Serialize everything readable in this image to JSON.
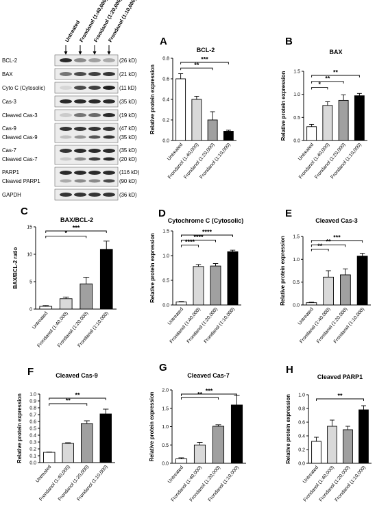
{
  "western_blot": {
    "column_labels": [
      "Untreated",
      "Frondanol (1:40,000)",
      "Frondanol (1:20,000)",
      "Frondanol (1:10,000)"
    ],
    "rows": [
      {
        "label": "BCL-2",
        "kd": "(26 kD)",
        "kind": "single",
        "intensity": [
          0.9,
          0.45,
          0.35,
          0.3
        ]
      },
      {
        "label": "BAX",
        "kd": "(21 kD)",
        "kind": "single",
        "intensity": [
          0.55,
          0.75,
          0.8,
          0.85
        ]
      },
      {
        "label": "Cyto C (Cytosolic)",
        "kd": "(11 kD)",
        "kind": "single",
        "intensity": [
          0.1,
          0.75,
          0.8,
          0.95
        ]
      },
      {
        "label": "Cas-3",
        "kd": "(35 kD)",
        "kind": "single",
        "intensity": [
          0.9,
          0.9,
          0.9,
          0.9
        ]
      },
      {
        "label": "Cleaved Cas-3",
        "kd": "(19 kD)",
        "kind": "single",
        "intensity": [
          0.15,
          0.55,
          0.6,
          0.9
        ]
      },
      {
        "label": "Cas-9",
        "kd": "(47 kD)",
        "label2": "Cleaved Cas-9",
        "kd2": "(35 kD)",
        "kind": "double",
        "intensity": [
          0.85,
          0.85,
          0.85,
          0.85
        ],
        "intensity2": [
          0.2,
          0.4,
          0.7,
          0.85
        ]
      },
      {
        "label": "Cas-7",
        "kd": "(35 kD)",
        "label2": "Cleaved Cas-7",
        "kd2": "(20 kD)",
        "kind": "double",
        "intensity": [
          0.85,
          0.9,
          0.9,
          0.9
        ],
        "intensity2": [
          0.15,
          0.45,
          0.8,
          0.9
        ]
      },
      {
        "label": "PARP1",
        "kd": "(116 kD)",
        "label2": "Cleaved PARP1",
        "kd2": "(90 kD)",
        "kind": "double",
        "intensity": [
          0.9,
          0.9,
          0.9,
          0.9
        ],
        "intensity2": [
          0.3,
          0.45,
          0.45,
          0.75
        ]
      },
      {
        "label": "GAPDH",
        "kd": "(36 kD)",
        "kind": "single",
        "intensity": [
          0.85,
          0.85,
          0.85,
          0.85
        ]
      }
    ]
  },
  "chart_data": [
    {
      "panel": "A",
      "type": "bar",
      "title": "BCL-2",
      "ylabel": "Relative protein expression",
      "categories": [
        "Untreated",
        "Frondanol (1:40,000)",
        "Frondanol (1:20,000)",
        "Frondanol (1:10,000)"
      ],
      "values": [
        0.6,
        0.4,
        0.2,
        0.09
      ],
      "errors": [
        0.05,
        0.03,
        0.08,
        0.01
      ],
      "ylim": [
        0,
        0.8
      ],
      "yticks": [
        "0.0",
        "0.2",
        "0.4",
        "0.6",
        "0.8"
      ],
      "fills": [
        "#ffffff",
        "#d9d9d9",
        "#a0a0a0",
        "#000000"
      ],
      "significance": [
        {
          "from": 0,
          "to": 2,
          "label": "**"
        },
        {
          "from": 0,
          "to": 3,
          "label": "***"
        }
      ]
    },
    {
      "panel": "B",
      "type": "bar",
      "title": "BAX",
      "ylabel": "Relative protein expression",
      "categories": [
        "Untreated",
        "Frondanol (1:40,000)",
        "Frondanol (1:20,000)",
        "Frondanol (1:10,000)"
      ],
      "values": [
        0.3,
        0.76,
        0.87,
        0.97
      ],
      "errors": [
        0.05,
        0.08,
        0.12,
        0.05
      ],
      "ylim": [
        0,
        1.5
      ],
      "yticks": [
        "0.0",
        "0.5",
        "1.0",
        "1.5"
      ],
      "fills": [
        "#ffffff",
        "#d9d9d9",
        "#a0a0a0",
        "#000000"
      ],
      "significance": [
        {
          "from": 0,
          "to": 1,
          "label": "*"
        },
        {
          "from": 0,
          "to": 2,
          "label": "**"
        },
        {
          "from": 0,
          "to": 3,
          "label": "**"
        }
      ]
    },
    {
      "panel": "C",
      "type": "bar",
      "title": "BAX/BCL-2",
      "ylabel": "BAX/BCL-2 ratio",
      "categories": [
        "Untreated",
        "Frondanol (1:40,000)",
        "Frondanol (1:20,000)",
        "Frondanol (1:10,000)"
      ],
      "values": [
        0.5,
        1.9,
        4.6,
        10.9
      ],
      "errors": [
        0.15,
        0.3,
        1.2,
        1.5
      ],
      "ylim": [
        0,
        15
      ],
      "yticks": [
        "0",
        "5",
        "10",
        "15"
      ],
      "fills": [
        "#ffffff",
        "#d9d9d9",
        "#a0a0a0",
        "#000000"
      ],
      "significance": [
        {
          "from": 0,
          "to": 2,
          "label": "*"
        },
        {
          "from": 0,
          "to": 3,
          "label": "***"
        }
      ]
    },
    {
      "panel": "D",
      "type": "bar",
      "title": "Cytochrome C (Cytosolic)",
      "ylabel": "Relative protein expression",
      "categories": [
        "Untreated",
        "Frondanol (1:40,000)",
        "Frondanol (1:20,000)",
        "Frondanol (1:10,000)"
      ],
      "values": [
        0.06,
        0.78,
        0.79,
        1.08
      ],
      "errors": [
        0.01,
        0.04,
        0.05,
        0.03
      ],
      "ylim": [
        0,
        1.5
      ],
      "yticks": [
        "0.0",
        "0.5",
        "1.0",
        "1.5"
      ],
      "fills": [
        "#ffffff",
        "#d9d9d9",
        "#a0a0a0",
        "#000000"
      ],
      "significance": [
        {
          "from": 0,
          "to": 1,
          "label": "****"
        },
        {
          "from": 0,
          "to": 2,
          "label": "****"
        },
        {
          "from": 0,
          "to": 3,
          "label": "****"
        }
      ]
    },
    {
      "panel": "E",
      "type": "bar",
      "title": "Cleaved  Cas-3",
      "ylabel": "Relative protein expression",
      "categories": [
        "Untreated",
        "Frondanol (1:40,000)",
        "Frondanol (1:20,000)",
        "Frondanol (1:10,000)"
      ],
      "values": [
        0.05,
        0.61,
        0.66,
        1.07
      ],
      "errors": [
        0.01,
        0.14,
        0.13,
        0.06
      ],
      "ylim": [
        0,
        1.5
      ],
      "yticks": [
        "0.0",
        "0.5",
        "1.0",
        "1.5"
      ],
      "fills": [
        "#ffffff",
        "#d9d9d9",
        "#a0a0a0",
        "#000000"
      ],
      "significance": [
        {
          "from": 0,
          "to": 1,
          "label": "**"
        },
        {
          "from": 0,
          "to": 2,
          "label": "**"
        },
        {
          "from": 0,
          "to": 3,
          "label": "***"
        }
      ]
    },
    {
      "panel": "F",
      "type": "bar",
      "title": "Cleaved  Cas-9",
      "ylabel": "Relative protein expression",
      "categories": [
        "Untreated",
        "Frondanol (1:40,000)",
        "Frondanol (1:20,000)",
        "Frondanol (1:10,000)"
      ],
      "values": [
        0.15,
        0.28,
        0.57,
        0.71
      ],
      "errors": [
        0.005,
        0.01,
        0.04,
        0.07
      ],
      "ylim": [
        0,
        1.0
      ],
      "yticks": [
        "0.0",
        "0.1",
        "0.2",
        "0.3",
        "0.4",
        "0.5",
        "0.6",
        "0.7",
        "0.8",
        "0.9",
        "1.0"
      ],
      "fills": [
        "#ffffff",
        "#d9d9d9",
        "#a0a0a0",
        "#000000"
      ],
      "significance": [
        {
          "from": 0,
          "to": 2,
          "label": "**"
        },
        {
          "from": 0,
          "to": 3,
          "label": "**"
        }
      ]
    },
    {
      "panel": "G",
      "type": "bar",
      "title": "Cleaved Cas-7",
      "ylabel": "Relative protein expression",
      "categories": [
        "Untreated",
        "Frondanol (1:40,000)",
        "Frondanol (1:20,000)",
        "Frondanol (1:10,000)"
      ],
      "values": [
        0.12,
        0.5,
        1.01,
        1.59
      ],
      "errors": [
        0.03,
        0.07,
        0.04,
        0.26
      ],
      "ylim": [
        0,
        2.0
      ],
      "yticks": [
        "0.0",
        "0.5",
        "1.0",
        "1.5",
        "2.0"
      ],
      "fills": [
        "#ffffff",
        "#d9d9d9",
        "#a0a0a0",
        "#000000"
      ],
      "significance": [
        {
          "from": 0,
          "to": 2,
          "label": "**"
        },
        {
          "from": 0,
          "to": 3,
          "label": "***"
        }
      ]
    },
    {
      "panel": "H",
      "type": "bar",
      "title": "Cleaved PARP1",
      "ylabel": "Relative protein expression",
      "categories": [
        "Untreated",
        "Frondanol (1:40,000)",
        "Frondanol (1:20,000)",
        "Frondanol (1:10,000)"
      ],
      "values": [
        0.32,
        0.54,
        0.49,
        0.78
      ],
      "errors": [
        0.06,
        0.09,
        0.05,
        0.06
      ],
      "ylim": [
        0,
        1.0
      ],
      "yticks": [
        "0.0",
        "0.2",
        "0.4",
        "0.6",
        "0.8",
        "1.0"
      ],
      "fills": [
        "#ffffff",
        "#d9d9d9",
        "#a0a0a0",
        "#000000"
      ],
      "significance": [
        {
          "from": 0,
          "to": 3,
          "label": "**"
        }
      ]
    }
  ]
}
